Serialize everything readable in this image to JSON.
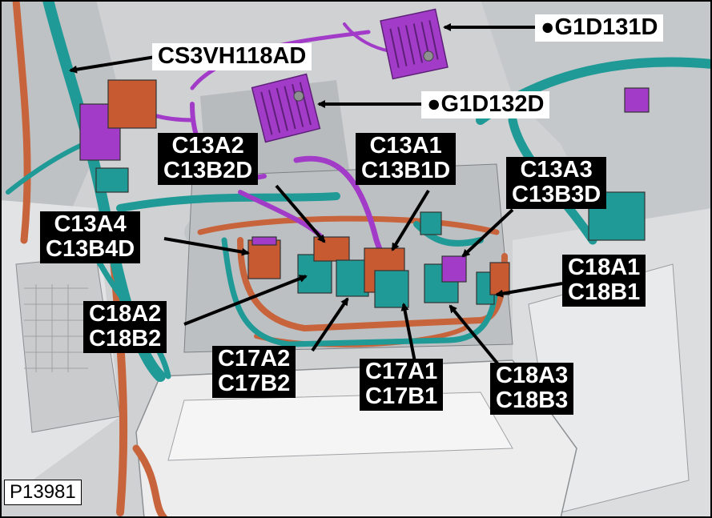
{
  "figure_ref": "P13981",
  "labels": {
    "g1d131d": "●G1D131D",
    "g1d132d": "●G1D132D",
    "cs3vh118ad": "CS3VH118AD",
    "c13a2": [
      "C13A2",
      "C13B2D"
    ],
    "c13a1": [
      "C13A1",
      "C13B1D"
    ],
    "c13a3": [
      "C13A3",
      "C13B3D"
    ],
    "c13a4": [
      "C13A4",
      "C13B4D"
    ],
    "c18a1": [
      "C18A1",
      "C18B1"
    ],
    "c18a2": [
      "C18A2",
      "C18B2"
    ],
    "c17a2": [
      "C17A2",
      "C17B2"
    ],
    "c17a1": [
      "C17A1",
      "C17B1"
    ],
    "c18a3": [
      "C18A3",
      "C18B3"
    ]
  },
  "colors": {
    "harness_teal": "#1f9a96",
    "harness_orange": "#c8643c",
    "connector_purple": "#a23cc8",
    "connector_orange": "#c85a32",
    "body_grey": "#d4d6d8"
  }
}
